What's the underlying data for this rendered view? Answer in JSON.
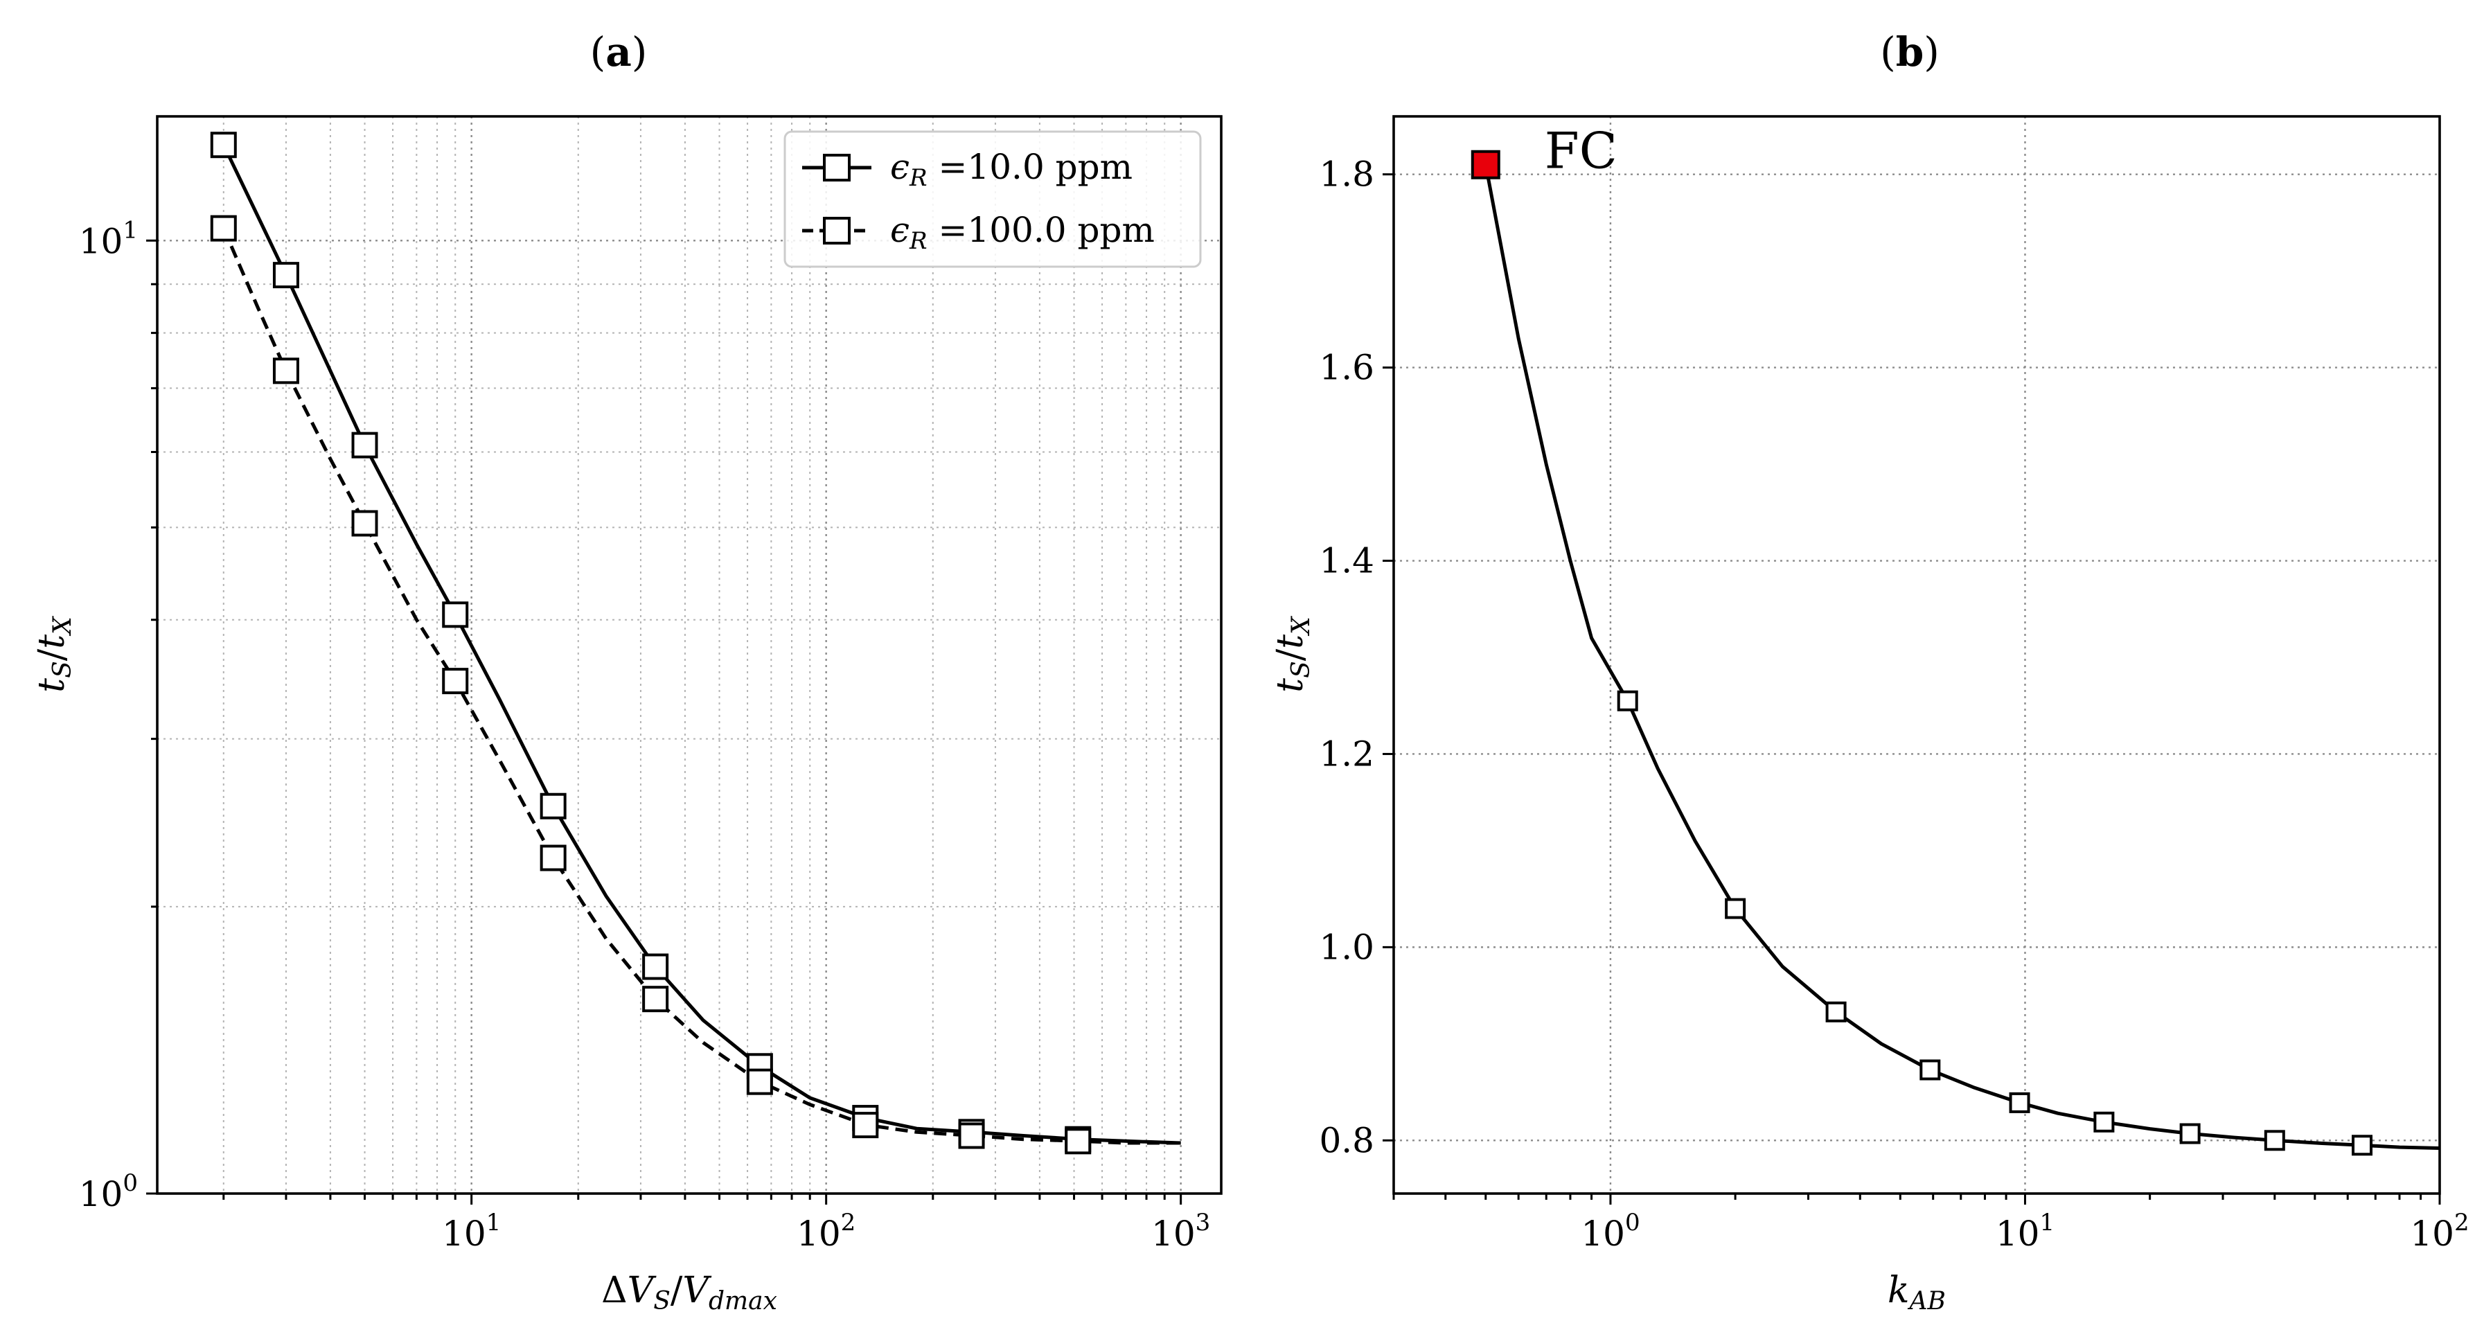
{
  "chart_data": [
    {
      "type": "line",
      "panel_label": "(a)",
      "panel_letter": "a",
      "xlabel": "ΔV_S/V_dmax",
      "ylabel": "t_S/t_X",
      "xscale": "log",
      "yscale": "log",
      "xlim": [
        1.3,
        1300
      ],
      "ylim": [
        1.0,
        13.5
      ],
      "grid": "major and minor, dotted",
      "legend_position": "top-right",
      "x_tick_labels": [
        {
          "value": 10,
          "base": "10",
          "exp": "1"
        },
        {
          "value": 100,
          "base": "10",
          "exp": "2"
        },
        {
          "value": 1000,
          "base": "10",
          "exp": "3"
        }
      ],
      "y_tick_labels": [
        {
          "value": 1,
          "base": "10",
          "exp": "0"
        },
        {
          "value": 10,
          "base": "10",
          "exp": "1"
        }
      ],
      "series": [
        {
          "name": "ϵR =10.0 ppm",
          "legend_label": "=10.0 ppm",
          "epsilon_value": "10.0",
          "linestyle": "solid",
          "marker": "open-square",
          "curve_x": [
            2,
            2.5,
            3,
            4,
            5,
            7,
            9,
            12,
            17,
            24,
            33,
            45,
            65,
            90,
            130,
            180,
            260,
            360,
            520,
            700,
            1000
          ],
          "curve_y": [
            12.6,
            10.6,
            9.2,
            7.3,
            6.1,
            4.8,
            4.05,
            3.3,
            2.55,
            2.05,
            1.73,
            1.52,
            1.36,
            1.26,
            1.2,
            1.17,
            1.16,
            1.15,
            1.14,
            1.135,
            1.13
          ],
          "x": [
            2,
            3,
            5,
            9,
            17,
            33,
            65,
            129,
            257,
            513
          ],
          "y": [
            12.6,
            9.2,
            6.1,
            4.05,
            2.55,
            1.73,
            1.36,
            1.2,
            1.16,
            1.14
          ]
        },
        {
          "name": "ϵR =100.0 ppm",
          "legend_label": "=100.0 ppm",
          "epsilon_value": "100.0",
          "linestyle": "dashed",
          "marker": "open-square",
          "curve_x": [
            2,
            2.5,
            3,
            4,
            5,
            7,
            9,
            12,
            17,
            24,
            33,
            45,
            65,
            90,
            130,
            180,
            260,
            360,
            520,
            700,
            1000
          ],
          "curve_y": [
            10.3,
            8.5,
            7.3,
            5.9,
            5.05,
            4.0,
            3.45,
            2.85,
            2.25,
            1.85,
            1.6,
            1.44,
            1.31,
            1.24,
            1.18,
            1.16,
            1.15,
            1.14,
            1.135,
            1.13,
            1.13
          ],
          "x": [
            2,
            3,
            5,
            9,
            17,
            33,
            65,
            129,
            257,
            513
          ],
          "y": [
            10.3,
            7.3,
            5.05,
            3.45,
            2.25,
            1.6,
            1.31,
            1.18,
            1.15,
            1.135
          ]
        }
      ]
    },
    {
      "type": "line",
      "panel_label": "(b)",
      "panel_letter": "b",
      "xlabel": "k_AB",
      "ylabel": "t_S/t_X",
      "xscale": "log",
      "yscale": "linear",
      "xlim": [
        0.3,
        100
      ],
      "ylim": [
        0.745,
        1.86
      ],
      "y_ticks": [
        0.8,
        1.0,
        1.2,
        1.4,
        1.6,
        1.8
      ],
      "y_tick_labels": [
        "0.8",
        "1.0",
        "1.2",
        "1.4",
        "1.6",
        "1.8"
      ],
      "x_tick_labels": [
        {
          "value": 1,
          "base": "10",
          "exp": "0"
        },
        {
          "value": 10,
          "base": "10",
          "exp": "1"
        },
        {
          "value": 100,
          "base": "10",
          "exp": "2"
        }
      ],
      "grid": "major, dotted",
      "annotation": {
        "text": "FC",
        "color": "#e8000b",
        "x": 0.5,
        "y": 1.81
      },
      "highlight_point": {
        "x": 0.5,
        "y": 1.81,
        "color": "#e8000b",
        "label": "FC"
      },
      "series": [
        {
          "name": "t_S/t_X vs k_AB",
          "linestyle": "solid",
          "marker": "open-square",
          "curve_x": [
            0.5,
            0.6,
            0.7,
            0.8,
            0.9,
            1.1,
            1.3,
            1.6,
            2.0,
            2.6,
            3.5,
            4.5,
            5.9,
            7.5,
            9.7,
            12,
            15.5,
            20,
            25,
            32,
            40,
            52,
            65,
            80,
            100
          ],
          "curve_y": [
            1.81,
            1.63,
            1.5,
            1.4,
            1.32,
            1.255,
            1.185,
            1.11,
            1.04,
            0.98,
            0.933,
            0.9,
            0.873,
            0.855,
            0.839,
            0.828,
            0.819,
            0.812,
            0.807,
            0.803,
            0.8,
            0.797,
            0.795,
            0.793,
            0.792
          ],
          "x": [
            1.1,
            2.0,
            3.5,
            5.9,
            9.7,
            15.5,
            25,
            40,
            65
          ],
          "y": [
            1.255,
            1.04,
            0.933,
            0.873,
            0.839,
            0.819,
            0.807,
            0.8,
            0.795
          ]
        }
      ]
    }
  ]
}
